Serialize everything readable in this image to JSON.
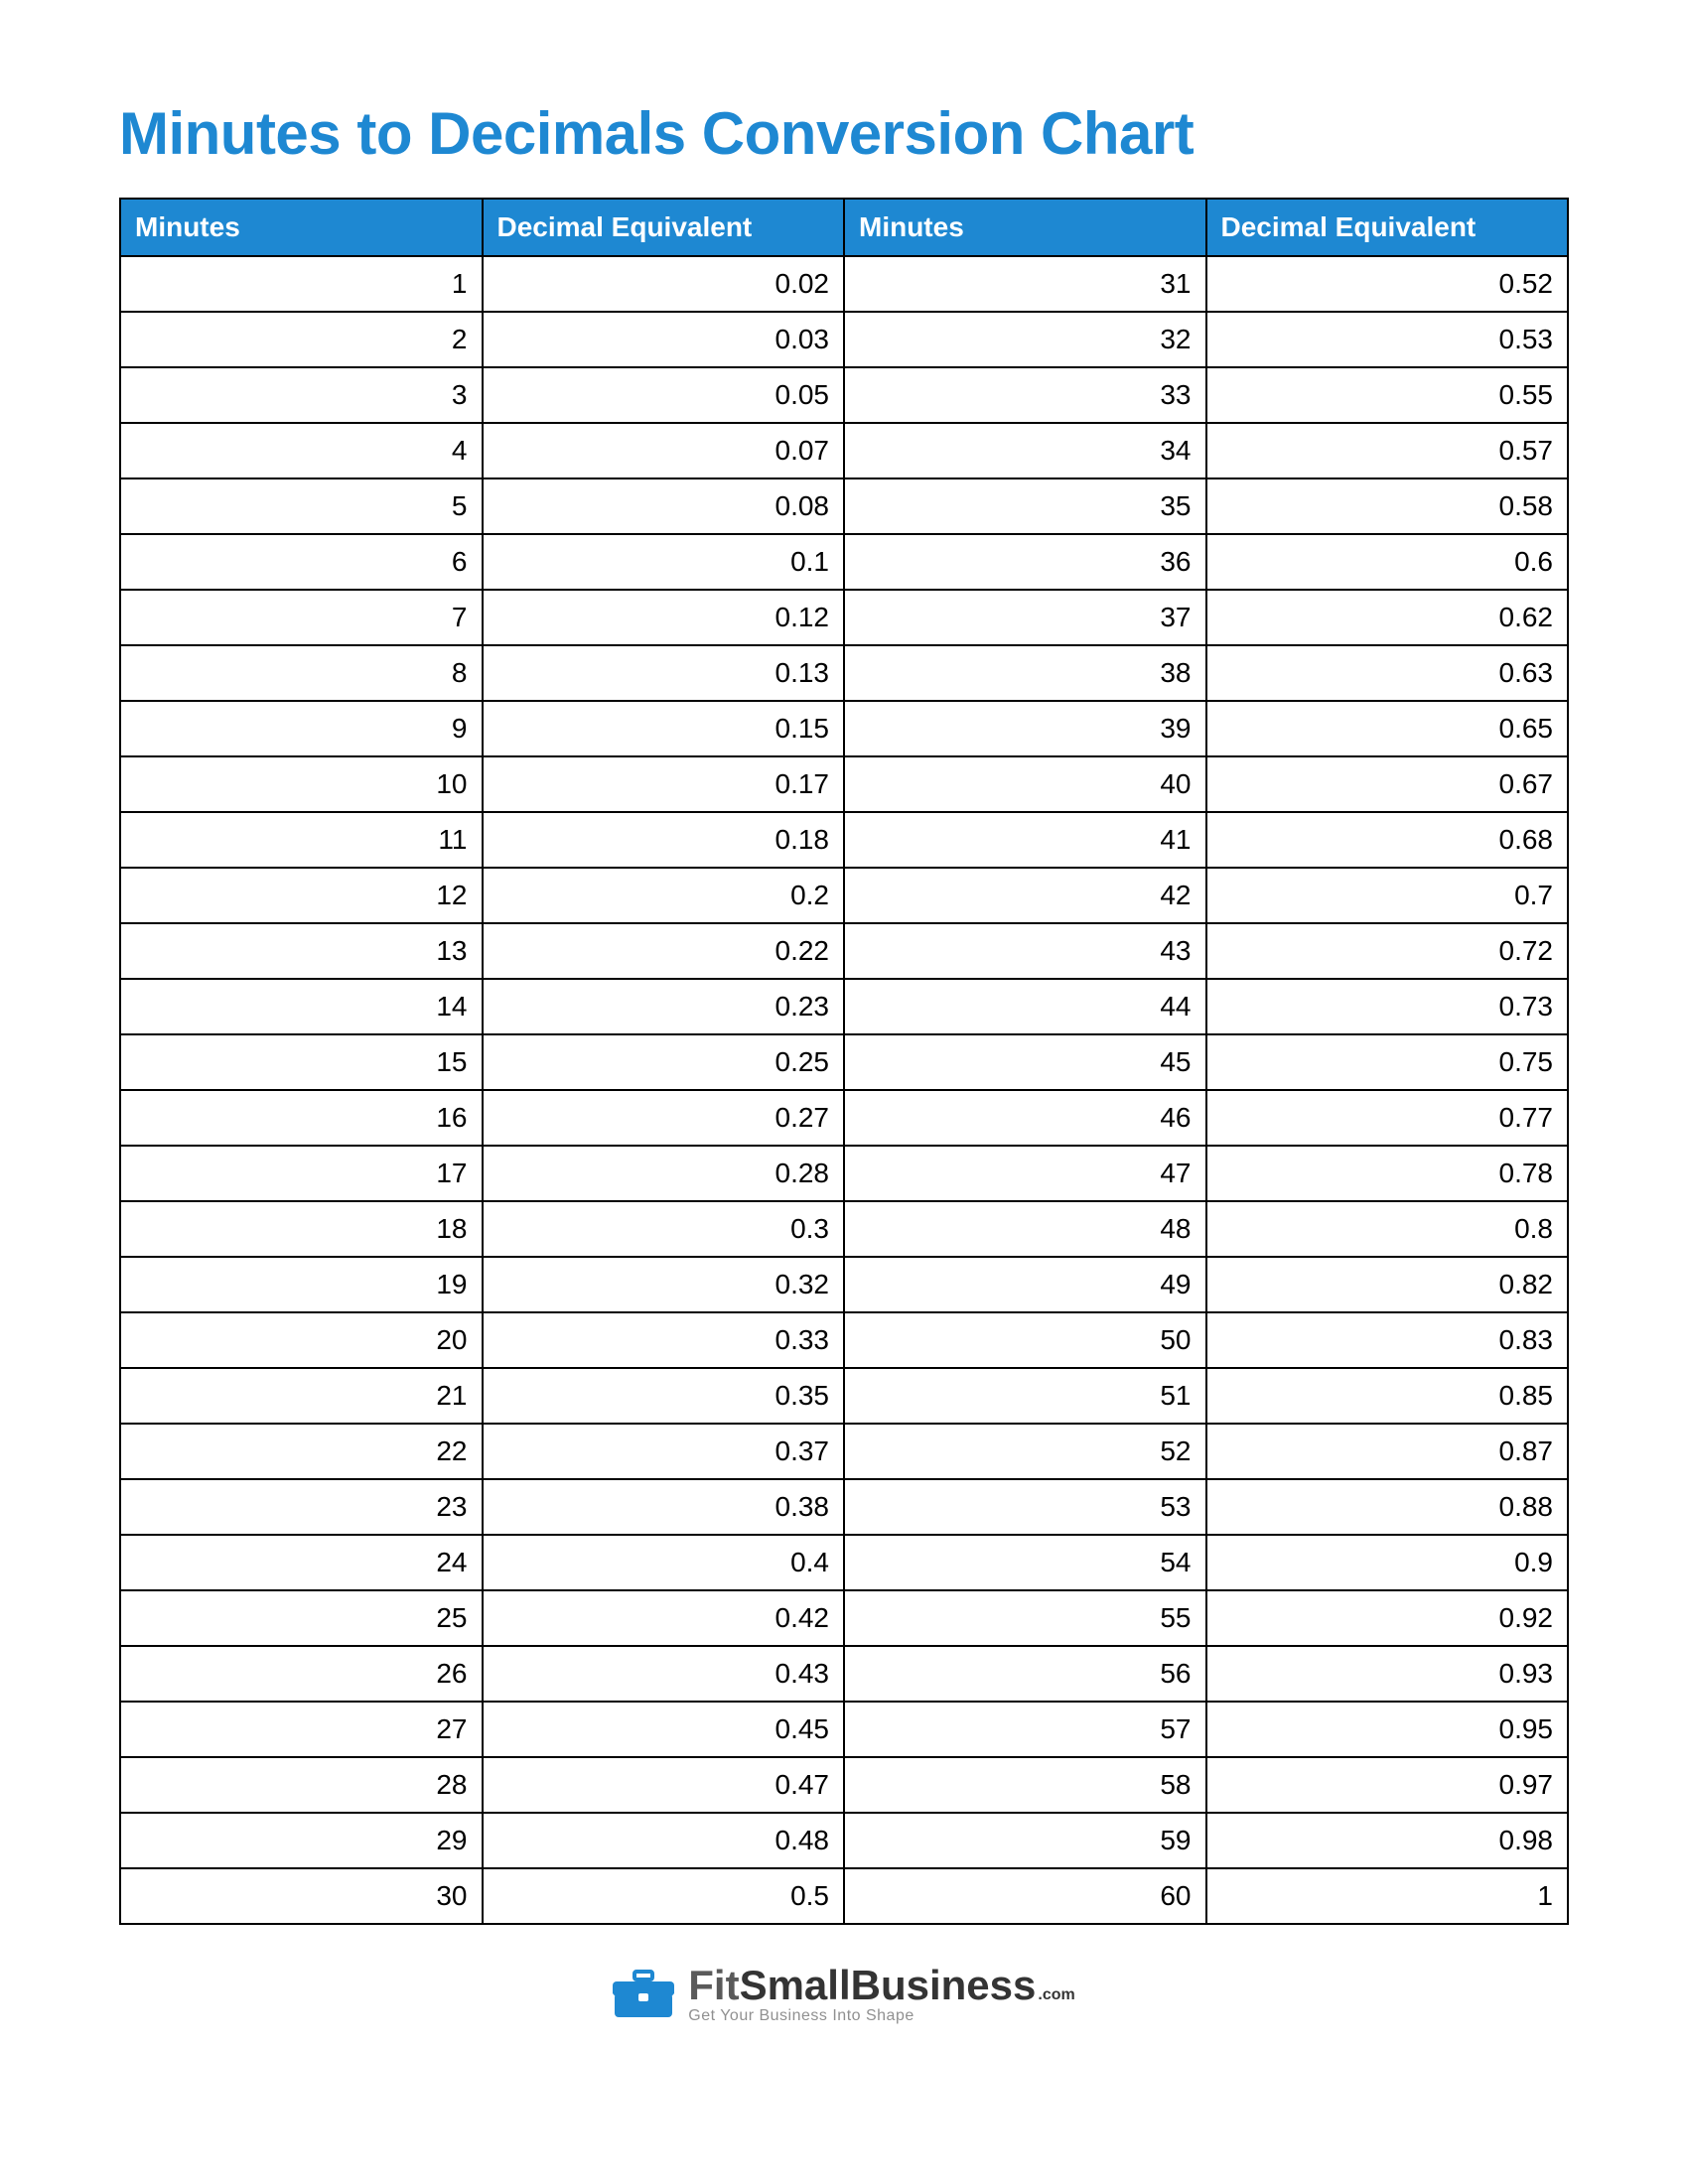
{
  "title": "Minutes to Decimals Conversion Chart",
  "table": {
    "columns": [
      "Minutes",
      "Decimal Equivalent",
      "Minutes",
      "Decimal Equivalent"
    ],
    "rows": [
      [
        "1",
        "0.02",
        "31",
        "0.52"
      ],
      [
        "2",
        "0.03",
        "32",
        "0.53"
      ],
      [
        "3",
        "0.05",
        "33",
        "0.55"
      ],
      [
        "4",
        "0.07",
        "34",
        "0.57"
      ],
      [
        "5",
        "0.08",
        "35",
        "0.58"
      ],
      [
        "6",
        "0.1",
        "36",
        "0.6"
      ],
      [
        "7",
        "0.12",
        "37",
        "0.62"
      ],
      [
        "8",
        "0.13",
        "38",
        "0.63"
      ],
      [
        "9",
        "0.15",
        "39",
        "0.65"
      ],
      [
        "10",
        "0.17",
        "40",
        "0.67"
      ],
      [
        "11",
        "0.18",
        "41",
        "0.68"
      ],
      [
        "12",
        "0.2",
        "42",
        "0.7"
      ],
      [
        "13",
        "0.22",
        "43",
        "0.72"
      ],
      [
        "14",
        "0.23",
        "44",
        "0.73"
      ],
      [
        "15",
        "0.25",
        "45",
        "0.75"
      ],
      [
        "16",
        "0.27",
        "46",
        "0.77"
      ],
      [
        "17",
        "0.28",
        "47",
        "0.78"
      ],
      [
        "18",
        "0.3",
        "48",
        "0.8"
      ],
      [
        "19",
        "0.32",
        "49",
        "0.82"
      ],
      [
        "20",
        "0.33",
        "50",
        "0.83"
      ],
      [
        "21",
        "0.35",
        "51",
        "0.85"
      ],
      [
        "22",
        "0.37",
        "52",
        "0.87"
      ],
      [
        "23",
        "0.38",
        "53",
        "0.88"
      ],
      [
        "24",
        "0.4",
        "54",
        "0.9"
      ],
      [
        "25",
        "0.42",
        "55",
        "0.92"
      ],
      [
        "26",
        "0.43",
        "56",
        "0.93"
      ],
      [
        "27",
        "0.45",
        "57",
        "0.95"
      ],
      [
        "28",
        "0.47",
        "58",
        "0.97"
      ],
      [
        "29",
        "0.48",
        "59",
        "0.98"
      ],
      [
        "30",
        "0.5",
        "60",
        "1"
      ]
    ],
    "header_bg": "#1e88d2",
    "header_text_color": "#ffffff",
    "cell_bg": "#ffffff",
    "cell_text_color": "#000000",
    "border_color": "#000000",
    "header_fontsize": 28,
    "cell_fontsize": 28,
    "cell_align": "right"
  },
  "logo": {
    "icon_color": "#1e88d2",
    "fit": "Fit",
    "small": "Small",
    "business": "Business",
    "com": ".com",
    "tagline": "Get Your Business Into Shape"
  },
  "colors": {
    "title": "#1e88d2",
    "background": "#ffffff"
  }
}
